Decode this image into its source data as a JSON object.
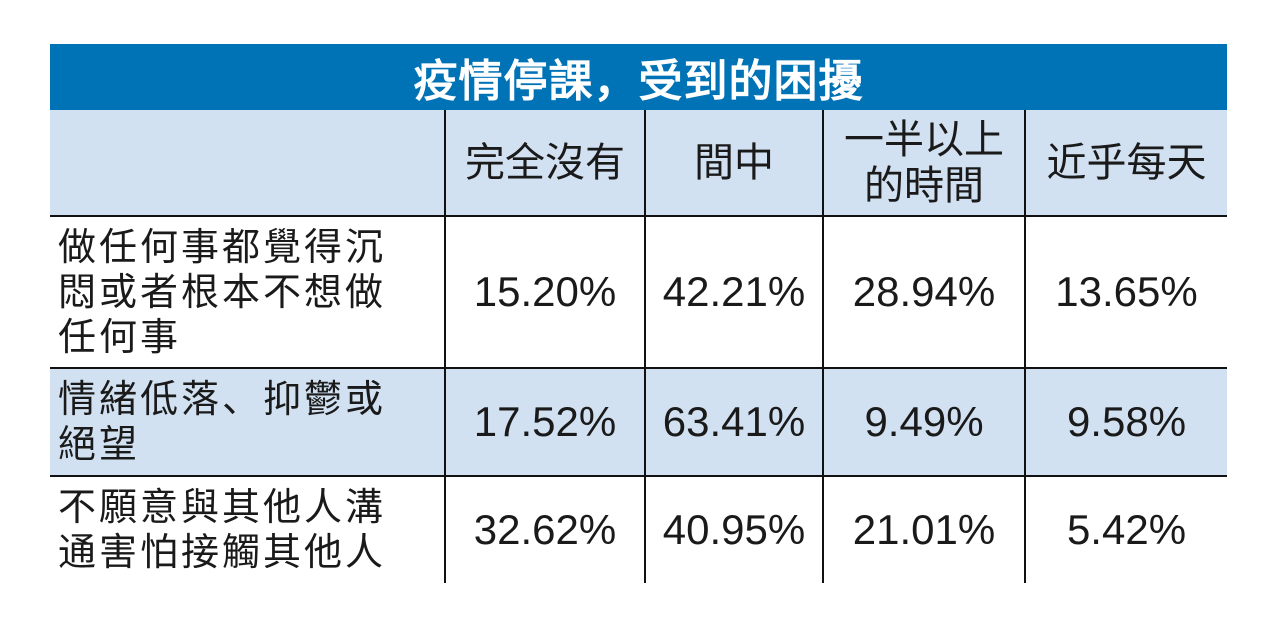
{
  "title": "疫情停課，受到的困擾",
  "columns": [
    "完全沒有",
    "間中",
    "一半以上的時間",
    "近乎每天"
  ],
  "column_lines": [
    [
      "完全沒有"
    ],
    [
      "間中"
    ],
    [
      "一半以上",
      "的時間"
    ],
    [
      "近乎每天"
    ]
  ],
  "rows": [
    {
      "label": "做任何事都覺得沉悶或者根本不想做任何事",
      "label_lines": [
        "做任何事都覺得沉",
        "悶或者根本不想做",
        "任何事"
      ],
      "values": [
        "15.20%",
        "42.21%",
        "28.94%",
        "13.65%"
      ]
    },
    {
      "label": "情緒低落、抑鬱或絕望",
      "label_lines": [
        "情緒低落、抑鬱或",
        "絕望"
      ],
      "values": [
        "17.52%",
        "63.41%",
        "9.49%",
        "9.58%"
      ]
    },
    {
      "label": "不願意與其他人溝通害怕接觸其他人",
      "label_lines": [
        "不願意與其他人溝",
        "通害怕接觸其他人"
      ],
      "values": [
        "32.62%",
        "40.95%",
        "21.01%",
        "5.42%"
      ]
    }
  ],
  "colors": {
    "title_bg": "#0072b6",
    "shaded_row": "#d2e1f2",
    "grid": "#111111"
  }
}
